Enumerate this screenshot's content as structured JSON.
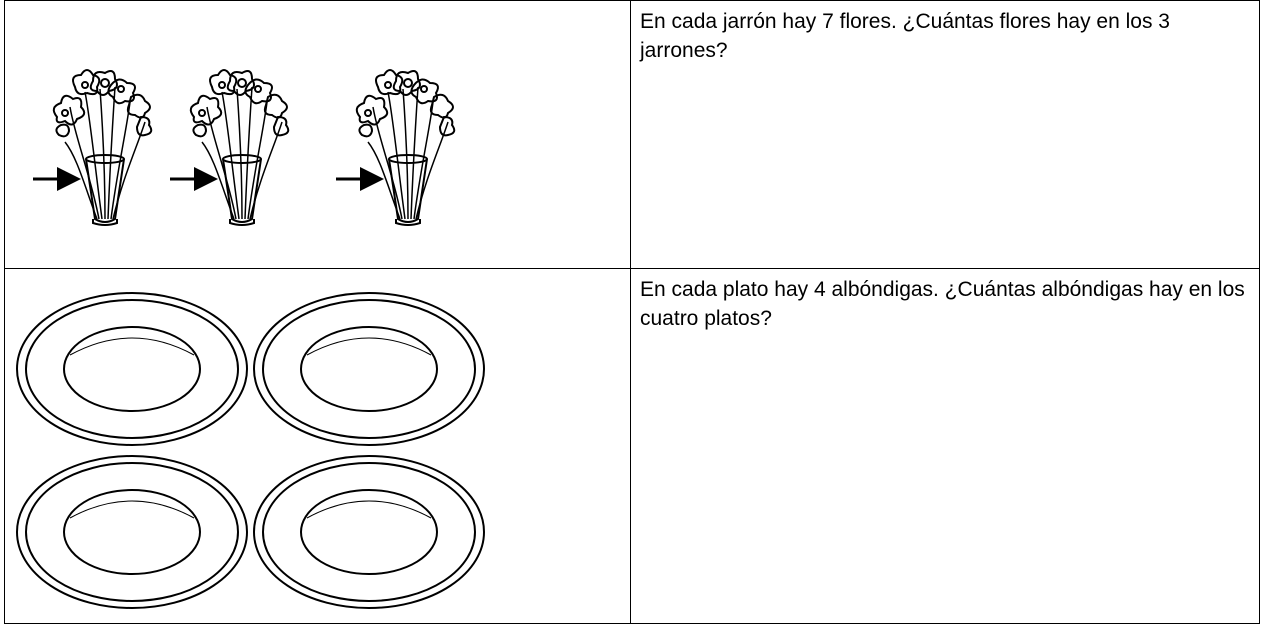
{
  "table": {
    "rows": [
      {
        "text": "En cada jarrón hay 7 flores. ¿Cuántas flores hay en los 3 jarrones?"
      },
      {
        "text": "En cada plato hay 4 albóndigas. ¿Cuántas albóndigas hay en los cuatro platos?"
      }
    ]
  }
}
